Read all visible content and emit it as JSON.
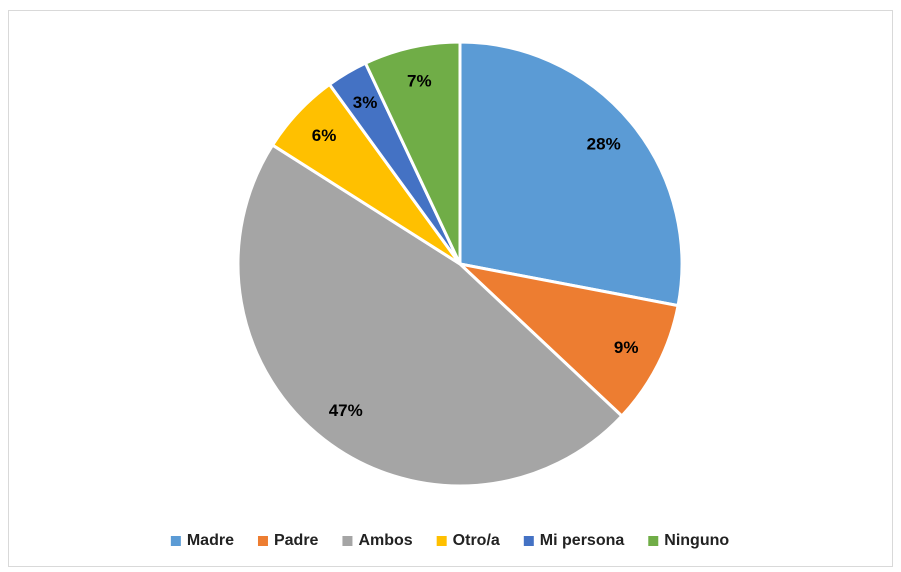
{
  "chart_data": {
    "type": "pie",
    "categories": [
      "Madre",
      "Padre",
      "Ambos",
      "Otro/a",
      "Mi persona",
      "Ninguno"
    ],
    "values": [
      28,
      9,
      47,
      6,
      3,
      7
    ],
    "value_labels": [
      "28%",
      "9%",
      "47%",
      "6%",
      "3%",
      "7%"
    ],
    "colors": [
      "#5b9bd5",
      "#ed7d31",
      "#a5a5a5",
      "#ffc000",
      "#4472c4",
      "#70ad47"
    ],
    "legend": "bottom"
  }
}
